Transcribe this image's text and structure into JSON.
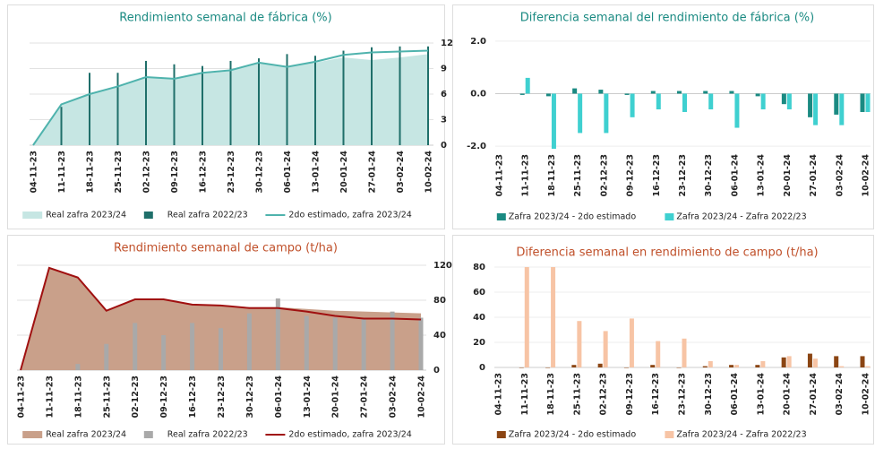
{
  "chart_data": [
    {
      "type": "area",
      "title": "Rendimiento semanal de fábrica (%)",
      "title_color": "#1a8a82",
      "yaxis_side": "right",
      "grid": true,
      "categories": [
        "04-11-23",
        "11-11-23",
        "18-11-23",
        "25-11-23",
        "02-12-23",
        "09-12-23",
        "16-12-23",
        "23-12-23",
        "30-12-23",
        "06-01-24",
        "13-01-24",
        "20-01-24",
        "27-01-24",
        "03-02-24",
        "10-02-24"
      ],
      "ylim": [
        0,
        12
      ],
      "yticks": [
        0,
        3,
        6,
        9,
        12
      ],
      "series": [
        {
          "name": "Real zafra 2023/24",
          "color": "#c6e6e3",
          "mark": "area",
          "values": [
            0,
            4.7,
            6,
            6.9,
            8.0,
            7.8,
            8.4,
            8.7,
            9.6,
            9.2,
            9.7,
            10.3,
            10.0,
            10.3,
            10.7
          ]
        },
        {
          "name": "Real zafra 2022/23",
          "color": "#1f6f6a",
          "mark": "bar",
          "values": [
            null,
            4.5,
            8.5,
            8.5,
            9.9,
            9.5,
            9.3,
            9.9,
            10.2,
            10.7,
            10.5,
            11.1,
            11.5,
            11.6,
            11.6
          ]
        },
        {
          "name": "2do estimado, zafra 2023/24",
          "color": "#4fb3ad",
          "mark": "line",
          "values": [
            0,
            4.8,
            6,
            6.9,
            8.0,
            7.8,
            8.5,
            8.8,
            9.7,
            9.2,
            9.8,
            10.6,
            10.9,
            11.0,
            11.1
          ]
        }
      ]
    },
    {
      "type": "bar",
      "title": "Diferencia semanal del rendimiento de fábrica (%)",
      "title_color": "#1a8a82",
      "yaxis_side": "left",
      "grid": false,
      "categories": [
        "04-11-23",
        "11-11-23",
        "18-11-23",
        "25-11-23",
        "02-12-23",
        "09-12-23",
        "16-12-23",
        "23-12-23",
        "30-12-23",
        "06-01-24",
        "13-01-24",
        "20-01-24",
        "27-01-24",
        "03-02-24",
        "10-02-24"
      ],
      "ylim": [
        -2.1,
        2.2
      ],
      "yticks": [
        {
          "value": 2,
          "label": "2.0"
        },
        {
          "value": 0,
          "label": "0.0"
        },
        {
          "value": -2,
          "label": "-2.0"
        }
      ],
      "series": [
        {
          "name": "Zafra 2023/24 - 2do estimado",
          "color": "#1a8a82",
          "mark": "bar",
          "values": [
            null,
            -0.05,
            -0.1,
            0.2,
            0.15,
            -0.05,
            0.1,
            0.1,
            0.1,
            0.1,
            -0.1,
            -0.4,
            -0.9,
            -0.8,
            -0.7
          ]
        },
        {
          "name": "Zafra 2023/24 - Zafra 2022/23",
          "color": "#3fd0d0",
          "mark": "bar",
          "values": [
            null,
            0.6,
            -2.1,
            -1.5,
            -1.5,
            -0.9,
            -0.6,
            -0.7,
            -0.6,
            -1.3,
            -0.6,
            -0.6,
            -1.2,
            -1.2,
            -0.7
          ]
        }
      ]
    },
    {
      "type": "area",
      "title": "Rendimiento semanal de campo (t/ha)",
      "title_color": "#c0502a",
      "yaxis_side": "right",
      "grid": true,
      "categories": [
        "04-11-23",
        "11-11-23",
        "18-11-23",
        "25-11-23",
        "02-12-23",
        "09-12-23",
        "16-12-23",
        "23-12-23",
        "30-12-23",
        "06-01-24",
        "13-01-24",
        "20-01-24",
        "27-01-24",
        "03-02-24",
        "10-02-24"
      ],
      "ylim": [
        0,
        120
      ],
      "yticks": [
        0,
        40,
        80,
        120
      ],
      "series": [
        {
          "name": "Real zafra 2023/24",
          "color": "#c9a08a",
          "mark": "area",
          "values": [
            0,
            117,
            106,
            68,
            81,
            81,
            75,
            74,
            72,
            72,
            70,
            68,
            67,
            66,
            65
          ]
        },
        {
          "name": "Real zafra 2022/23",
          "color": "#a9a9a9",
          "mark": "bar",
          "values": [
            null,
            null,
            7,
            30,
            54,
            40,
            54,
            48,
            65,
            82,
            62,
            60,
            60,
            67,
            60
          ]
        },
        {
          "name": "2do estimado, zafra 2023/24",
          "color": "#a01010",
          "mark": "line",
          "values": [
            0,
            117,
            106,
            68,
            81,
            81,
            75,
            74,
            71,
            71,
            67,
            62,
            59,
            59,
            58
          ]
        }
      ]
    },
    {
      "type": "bar",
      "title": "Diferencia semanal en rendimiento de campo (t/ha)",
      "title_color": "#c0502a",
      "yaxis_side": "left",
      "grid": false,
      "categories": [
        "04-11-23",
        "11-11-23",
        "18-11-23",
        "25-11-23",
        "02-12-23",
        "09-12-23",
        "16-12-23",
        "23-12-23",
        "30-12-23",
        "06-01-24",
        "13-01-24",
        "20-01-24",
        "27-01-24",
        "03-02-24",
        "10-02-24"
      ],
      "ylim": [
        0,
        80
      ],
      "yticks": [
        0,
        20,
        40,
        60,
        80
      ],
      "series": [
        {
          "name": "Zafra 2023/24 - 2do estimado",
          "color": "#8b4513",
          "mark": "bar",
          "values": [
            null,
            0,
            0,
            2,
            3,
            0,
            2,
            0,
            1,
            2,
            2,
            8,
            11,
            9,
            9
          ]
        },
        {
          "name": "Zafra 2023/24 - Zafra 2022/23",
          "color": "#f7c4a5",
          "mark": "bar",
          "values": [
            null,
            80,
            80,
            37,
            29,
            39,
            21,
            23,
            5,
            2,
            5,
            9,
            7,
            1,
            1
          ]
        }
      ]
    }
  ]
}
